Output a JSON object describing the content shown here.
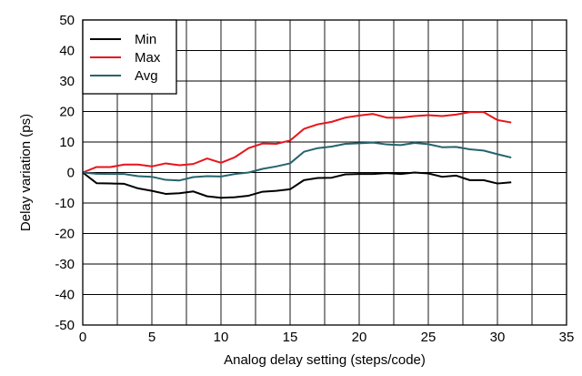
{
  "chart_data": {
    "type": "line",
    "xlabel": "Analog delay setting (steps/code)",
    "ylabel": "Delay variation (ps)",
    "xlim": [
      0,
      35
    ],
    "ylim": [
      -50,
      50
    ],
    "x_ticks": [
      0,
      5,
      10,
      15,
      20,
      25,
      30,
      35
    ],
    "y_ticks": [
      -50,
      -40,
      -30,
      -20,
      -10,
      0,
      10,
      20,
      30,
      40,
      50
    ],
    "x_gridlines": [
      0,
      2.5,
      5,
      7.5,
      10,
      12.5,
      15,
      17.5,
      20,
      22.5,
      25,
      27.5,
      30,
      32.5,
      35
    ],
    "y_gridlines": [
      -50,
      -40,
      -30,
      -20,
      -10,
      0,
      10,
      20,
      30,
      40,
      50
    ],
    "grid": true,
    "legend_position": "top-left",
    "x": [
      0,
      1,
      2,
      3,
      4,
      5,
      6,
      7,
      8,
      9,
      10,
      11,
      12,
      13,
      14,
      15,
      16,
      17,
      18,
      19,
      20,
      21,
      22,
      23,
      24,
      25,
      26,
      27,
      28,
      29,
      30,
      31
    ],
    "series": [
      {
        "name": "Min",
        "color": "#000000",
        "values": [
          0,
          -3.5,
          -3.6,
          -3.7,
          -5.2,
          -6,
          -7,
          -6.8,
          -6.2,
          -7.8,
          -8.3,
          -8.1,
          -7.6,
          -6.3,
          -6,
          -5.5,
          -2.5,
          -1.8,
          -1.7,
          -0.6,
          -0.5,
          -0.5,
          -0.2,
          -0.5,
          0,
          -0.3,
          -1.4,
          -1,
          -2.5,
          -2.5,
          -3.6,
          -3.2
        ]
      },
      {
        "name": "Max",
        "color": "#e8141b",
        "values": [
          0,
          1.8,
          1.8,
          2.6,
          2.6,
          2,
          3,
          2.4,
          2.8,
          4.6,
          3.2,
          5,
          8,
          9.5,
          9.4,
          10.5,
          14.3,
          15.8,
          16.6,
          18,
          18.7,
          19.2,
          18,
          18,
          18.5,
          18.8,
          18.5,
          19,
          19.8,
          19.8,
          17.2,
          16.4
        ]
      },
      {
        "name": "Avg",
        "color": "#25646e",
        "values": [
          0,
          -0.4,
          -0.5,
          -0.5,
          -1.2,
          -1.4,
          -2.4,
          -2.6,
          -1.5,
          -1.2,
          -1.3,
          -0.5,
          0,
          1.2,
          2,
          3,
          6.8,
          8,
          8.5,
          9.4,
          9.6,
          9.8,
          9.2,
          9,
          9.7,
          9.3,
          8.3,
          8.4,
          7.6,
          7.2,
          6,
          4.9
        ]
      }
    ]
  }
}
